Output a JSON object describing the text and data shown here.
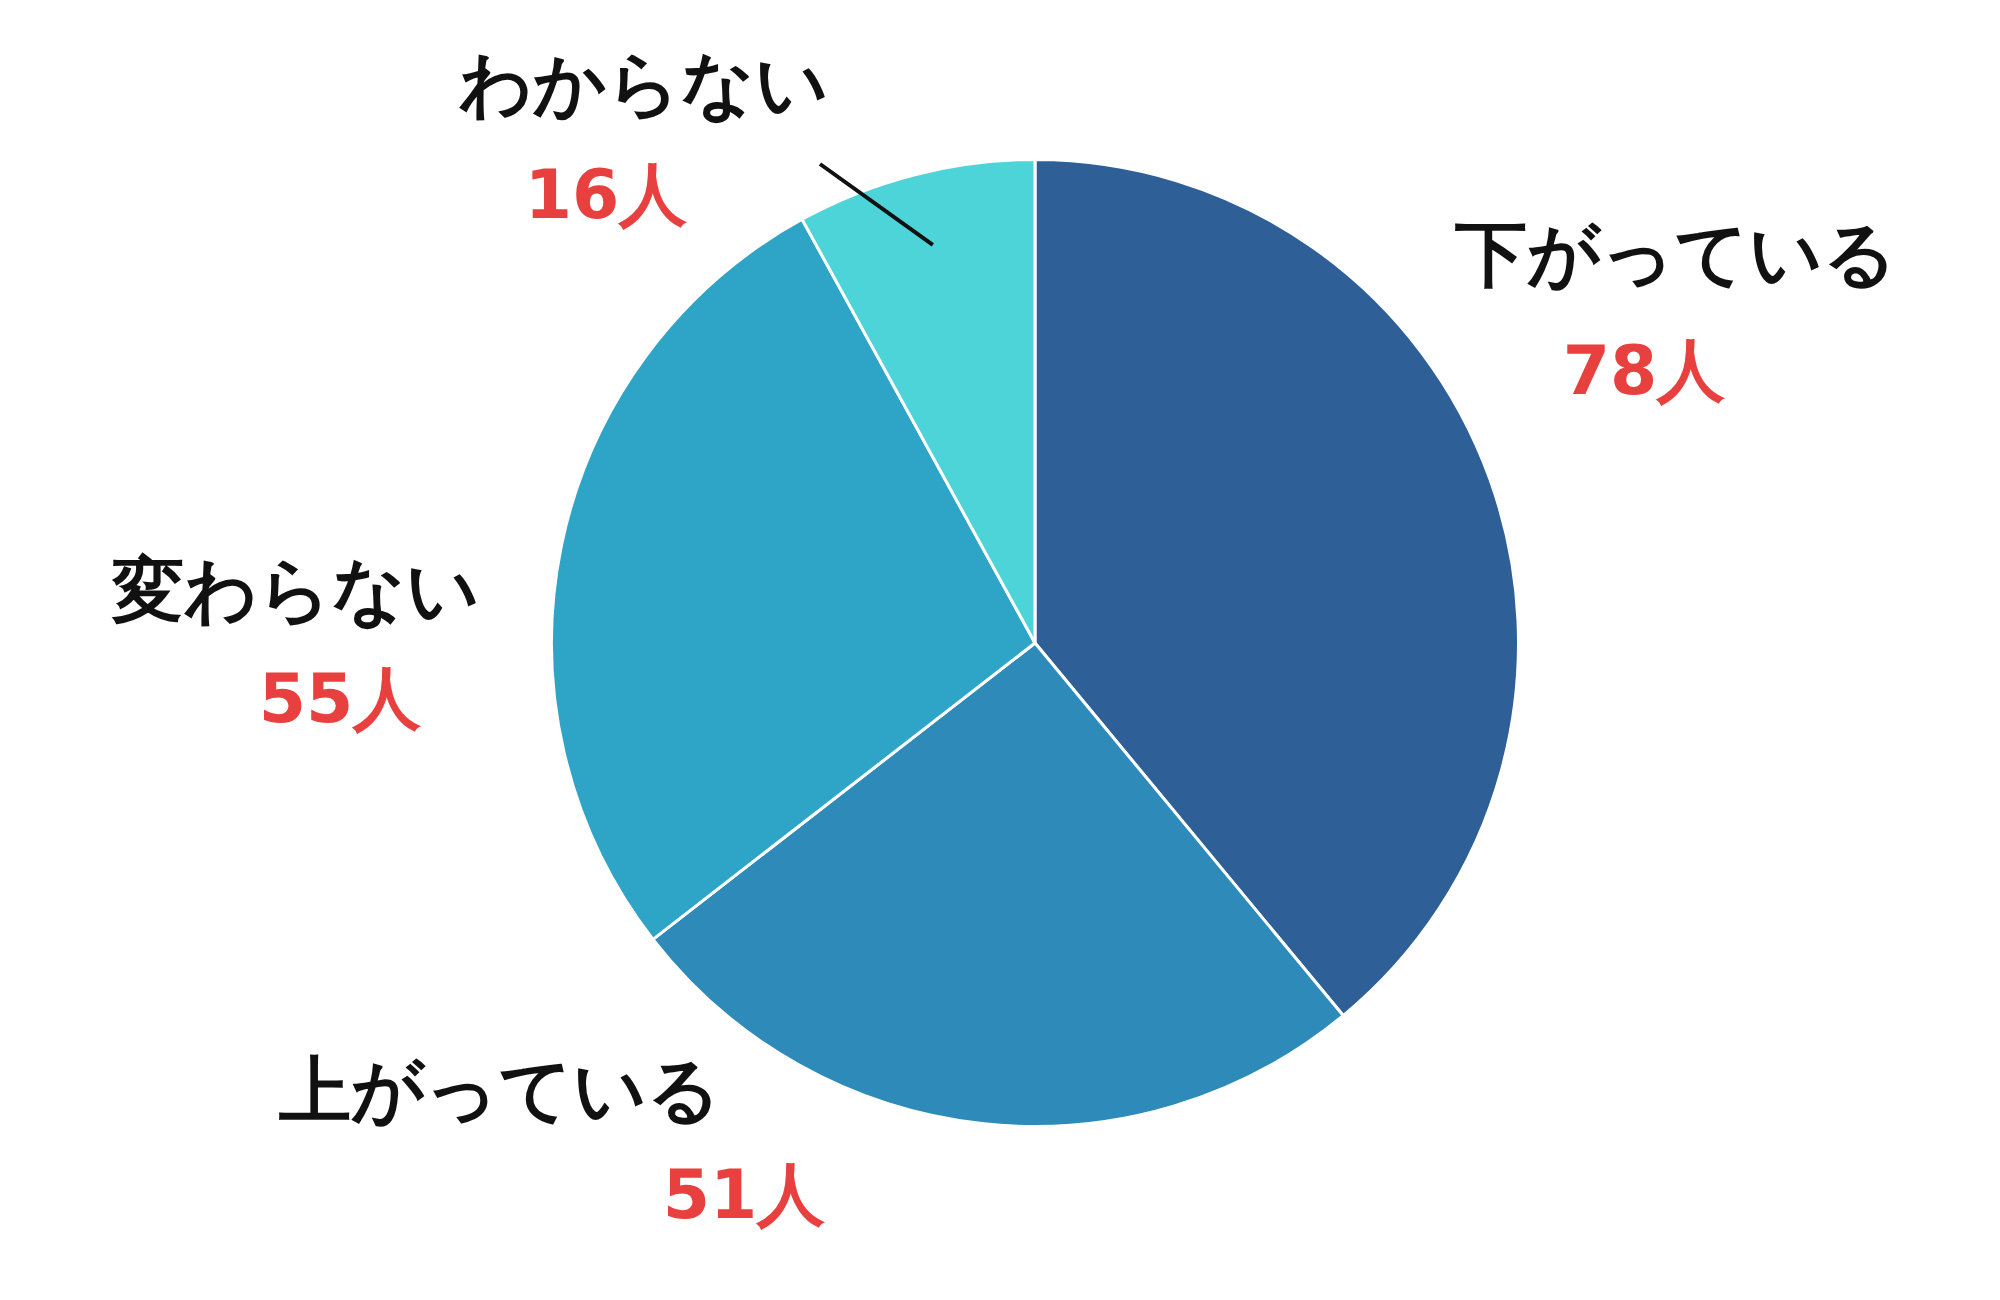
{
  "chart_data": {
    "type": "pie",
    "categories": [
      "下がっている",
      "上がっている",
      "変わらない",
      "わからない"
    ],
    "values": [
      78,
      51,
      55,
      16
    ],
    "value_labels": [
      "78人",
      "51人",
      "55人",
      "16人"
    ],
    "colors": [
      "#2e5f96",
      "#2e8ab8",
      "#2ea5c7",
      "#4dd4d9"
    ],
    "legend": false
  }
}
